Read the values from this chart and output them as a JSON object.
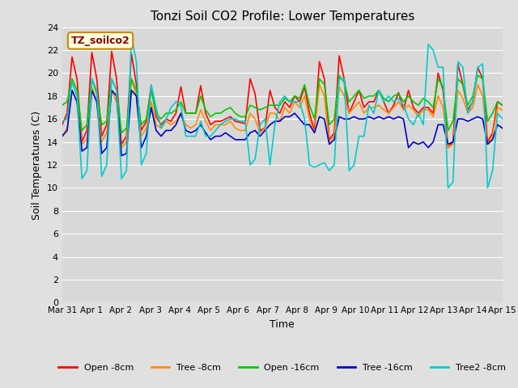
{
  "title": "Tonzi Soil CO2 Profile: Lower Temperatures",
  "xlabel": "Time",
  "ylabel": "Soil Temperatures (C)",
  "ylim": [
    0,
    24
  ],
  "yticks": [
    0,
    2,
    4,
    6,
    8,
    10,
    12,
    14,
    16,
    18,
    20,
    22,
    24
  ],
  "xtick_labels": [
    "Mar 31",
    "Apr 1",
    "Apr 2",
    "Apr 3",
    "Apr 4",
    "Apr 5",
    "Apr 6",
    "Apr 7",
    "Apr 8",
    "Apr 9",
    "Apr 10",
    "Apr 11",
    "Apr 12",
    "Apr 13",
    "Apr 14",
    "Apr 15"
  ],
  "watermark": "TZ_soilco2",
  "fig_facecolor": "#e0e0e0",
  "ax_facecolor": "#d8d8d8",
  "series": {
    "open_8cm": {
      "color": "#ff0000",
      "label": "Open -8cm",
      "values": [
        15.5,
        16.5,
        21.4,
        19.5,
        14.0,
        15.0,
        21.8,
        19.5,
        14.5,
        15.5,
        21.9,
        19.5,
        13.8,
        14.5,
        21.7,
        19.0,
        15.0,
        15.8,
        18.9,
        16.2,
        15.5,
        16.0,
        15.8,
        16.5,
        18.8,
        16.5,
        16.5,
        16.5,
        18.9,
        16.5,
        15.5,
        15.8,
        15.8,
        16.0,
        16.2,
        15.8,
        15.7,
        15.6,
        19.5,
        18.2,
        15.0,
        15.2,
        18.5,
        17.0,
        16.5,
        17.5,
        17.0,
        18.0,
        17.5,
        18.8,
        16.5,
        15.0,
        21.0,
        19.5,
        14.2,
        14.8,
        21.5,
        19.5,
        16.5,
        17.5,
        18.5,
        17.0,
        17.5,
        17.5,
        18.5,
        17.5,
        16.5,
        17.2,
        18.3,
        16.8,
        18.5,
        17.0,
        16.5,
        17.0,
        17.0,
        16.5,
        20.0,
        18.5,
        13.5,
        14.0,
        20.8,
        19.0,
        16.8,
        17.5,
        20.5,
        19.5,
        14.0,
        14.8,
        17.5,
        17.2
      ]
    },
    "tree_8cm": {
      "color": "#ff8c00",
      "label": "Tree -8cm",
      "values": [
        14.5,
        15.2,
        18.5,
        17.5,
        13.8,
        14.2,
        18.8,
        17.5,
        14.0,
        14.8,
        18.5,
        17.5,
        13.5,
        14.0,
        19.5,
        18.0,
        14.5,
        15.2,
        17.5,
        15.5,
        15.2,
        15.8,
        15.5,
        15.8,
        16.5,
        15.5,
        15.2,
        15.5,
        16.8,
        15.8,
        15.0,
        15.5,
        15.5,
        15.5,
        15.8,
        15.2,
        15.0,
        15.0,
        16.5,
        16.0,
        14.8,
        15.2,
        16.5,
        16.5,
        15.8,
        17.0,
        16.5,
        17.5,
        17.0,
        18.0,
        16.0,
        14.8,
        19.0,
        18.0,
        14.0,
        14.5,
        18.8,
        18.0,
        16.5,
        17.0,
        17.5,
        16.5,
        17.0,
        17.0,
        17.2,
        16.8,
        16.5,
        17.0,
        17.5,
        16.8,
        17.2,
        16.8,
        16.2,
        16.8,
        16.8,
        16.2,
        18.0,
        17.0,
        13.5,
        13.8,
        18.5,
        17.8,
        16.5,
        17.0,
        19.0,
        18.0,
        13.8,
        14.5,
        17.0,
        16.8
      ]
    },
    "open_16cm": {
      "color": "#00cc00",
      "label": "Open -16cm",
      "values": [
        17.2,
        17.5,
        19.5,
        18.5,
        15.0,
        15.5,
        19.5,
        18.2,
        15.5,
        15.8,
        19.5,
        18.5,
        14.8,
        15.2,
        19.5,
        18.5,
        15.5,
        16.0,
        18.5,
        16.5,
        16.0,
        16.5,
        16.5,
        16.8,
        17.5,
        16.5,
        16.5,
        16.5,
        18.0,
        16.8,
        16.2,
        16.5,
        16.5,
        16.8,
        17.0,
        16.5,
        16.2,
        16.2,
        17.2,
        17.0,
        16.8,
        17.0,
        17.2,
        17.2,
        17.2,
        17.8,
        17.5,
        18.0,
        17.8,
        19.0,
        17.2,
        16.0,
        19.5,
        19.0,
        15.5,
        16.0,
        19.8,
        19.2,
        17.5,
        18.0,
        18.5,
        17.8,
        18.0,
        18.0,
        18.5,
        17.8,
        17.5,
        18.0,
        18.2,
        17.5,
        18.0,
        17.5,
        17.2,
        17.8,
        17.5,
        17.0,
        19.5,
        18.8,
        15.0,
        15.8,
        19.5,
        19.0,
        17.2,
        18.0,
        19.8,
        19.5,
        15.8,
        16.5,
        17.5,
        17.2
      ]
    },
    "tree_16cm": {
      "color": "#0000cc",
      "label": "Tree -16cm",
      "values": [
        14.5,
        15.0,
        18.5,
        17.5,
        13.2,
        13.5,
        18.5,
        17.5,
        13.0,
        13.5,
        18.5,
        18.0,
        12.8,
        13.0,
        18.5,
        18.0,
        13.5,
        14.5,
        17.0,
        15.0,
        14.5,
        15.0,
        15.0,
        15.5,
        16.5,
        15.0,
        14.8,
        15.0,
        15.5,
        14.8,
        14.2,
        14.5,
        14.5,
        14.8,
        14.5,
        14.2,
        14.2,
        14.2,
        14.8,
        15.0,
        14.5,
        15.0,
        15.5,
        15.8,
        15.8,
        16.2,
        16.2,
        16.5,
        16.0,
        15.5,
        15.5,
        14.8,
        16.2,
        16.0,
        13.8,
        14.2,
        16.2,
        16.0,
        16.0,
        16.2,
        16.0,
        16.0,
        16.2,
        16.0,
        16.2,
        16.0,
        16.2,
        16.0,
        16.2,
        16.0,
        13.5,
        14.0,
        13.8,
        14.0,
        13.5,
        14.0,
        15.5,
        15.5,
        13.8,
        14.0,
        16.0,
        16.0,
        15.8,
        16.0,
        16.2,
        16.0,
        13.8,
        14.2,
        15.5,
        15.2
      ]
    },
    "tree2_8cm": {
      "color": "#00cccc",
      "label": "Tree2 -8cm",
      "values": [
        15.8,
        16.0,
        19.2,
        18.0,
        10.8,
        11.5,
        19.5,
        18.5,
        11.0,
        12.0,
        19.5,
        18.5,
        10.8,
        11.5,
        23.2,
        21.0,
        12.0,
        13.0,
        19.0,
        17.0,
        15.2,
        16.0,
        17.0,
        17.5,
        17.2,
        14.5,
        14.5,
        14.5,
        15.8,
        14.5,
        14.5,
        15.0,
        15.5,
        15.8,
        16.0,
        16.0,
        15.8,
        15.8,
        12.0,
        12.5,
        15.5,
        16.0,
        12.0,
        15.5,
        17.5,
        18.0,
        17.5,
        17.5,
        17.5,
        16.0,
        12.0,
        11.8,
        12.0,
        12.2,
        11.5,
        12.0,
        19.5,
        19.5,
        11.5,
        12.0,
        14.5,
        14.5,
        17.2,
        16.5,
        18.5,
        17.5,
        18.0,
        17.5,
        17.8,
        17.2,
        16.0,
        15.5,
        16.5,
        15.5,
        22.5,
        22.0,
        20.5,
        20.5,
        10.0,
        10.5,
        21.0,
        20.5,
        16.5,
        17.5,
        20.5,
        20.8,
        10.0,
        11.5,
        16.5,
        16.0
      ]
    }
  }
}
